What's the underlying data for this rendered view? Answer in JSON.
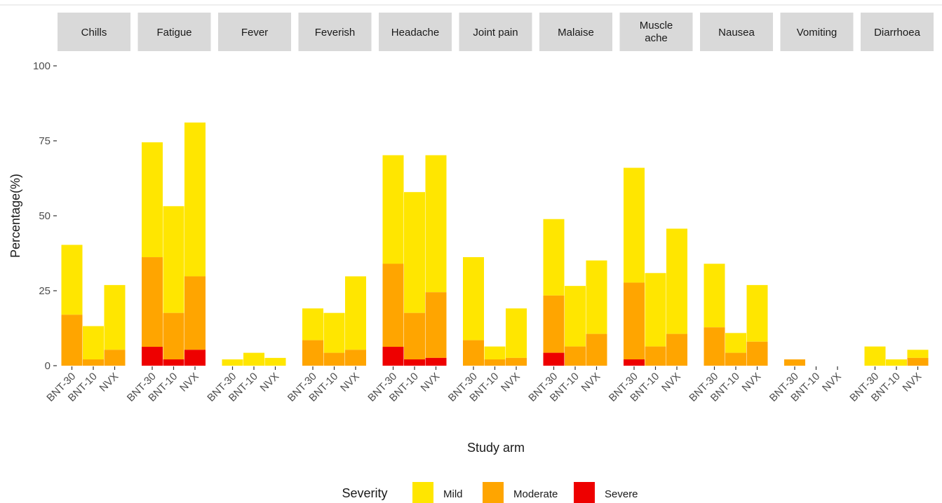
{
  "chart_data": {
    "type": "bar",
    "stacked": true,
    "xlabel": "Study arm",
    "ylabel": "Percentage(%)",
    "ylim": [
      0,
      100
    ],
    "yticks": [
      0,
      25,
      50,
      75,
      100
    ],
    "arms": [
      "BNT-30",
      "BNT-10",
      "NVX"
    ],
    "legend": {
      "title": "Severity",
      "position": "bottom",
      "items": [
        {
          "name": "Mild",
          "color": "#FFE600"
        },
        {
          "name": "Moderate",
          "color": "#FFA500"
        },
        {
          "name": "Severe",
          "color": "#EE0000"
        }
      ]
    },
    "facets": [
      {
        "label": [
          "Chills"
        ],
        "totals": [
          40.3,
          13.2,
          26.9
        ],
        "moderate": [
          17.0,
          2.1,
          5.3
        ],
        "severe": [
          0,
          0,
          0
        ]
      },
      {
        "label": [
          "Fatigue"
        ],
        "totals": [
          74.5,
          53.2,
          81.1
        ],
        "moderate": [
          36.2,
          17.6,
          29.8
        ],
        "severe": [
          6.3,
          2.1,
          5.3
        ]
      },
      {
        "label": [
          "Fever"
        ],
        "totals": [
          2.1,
          4.3,
          2.6
        ],
        "moderate": [
          0,
          0,
          0
        ],
        "severe": [
          0,
          0,
          0
        ]
      },
      {
        "label": [
          "Feverish"
        ],
        "totals": [
          19.1,
          17.6,
          29.8
        ],
        "moderate": [
          8.5,
          4.3,
          5.3
        ],
        "severe": [
          0,
          0,
          0
        ]
      },
      {
        "label": [
          "Headache"
        ],
        "totals": [
          70.2,
          57.9,
          70.2
        ],
        "moderate": [
          34.0,
          17.6,
          24.5
        ],
        "severe": [
          6.3,
          2.1,
          2.6
        ]
      },
      {
        "label": [
          "Joint pain"
        ],
        "totals": [
          36.2,
          6.4,
          19.1
        ],
        "moderate": [
          8.5,
          2.1,
          2.6
        ],
        "severe": [
          0,
          0,
          0
        ]
      },
      {
        "label": [
          "Malaise"
        ],
        "totals": [
          48.9,
          26.6,
          35.1
        ],
        "moderate": [
          23.4,
          6.4,
          10.6
        ],
        "severe": [
          4.3,
          0,
          0
        ]
      },
      {
        "label": [
          "Muscle",
          "ache"
        ],
        "totals": [
          66.0,
          30.9,
          45.7
        ],
        "moderate": [
          27.7,
          6.4,
          10.6
        ],
        "severe": [
          2.1,
          0,
          0
        ]
      },
      {
        "label": [
          "Nausea"
        ],
        "totals": [
          34.0,
          10.9,
          26.9
        ],
        "moderate": [
          12.8,
          4.3,
          8.0
        ],
        "severe": [
          0,
          0,
          0
        ]
      },
      {
        "label": [
          "Vomiting"
        ],
        "totals": [
          2.1,
          0,
          0
        ],
        "moderate": [
          2.1,
          0,
          0
        ],
        "severe": [
          0,
          0,
          0
        ]
      },
      {
        "label": [
          "Diarrhoea"
        ],
        "totals": [
          6.4,
          2.1,
          5.3
        ],
        "moderate": [
          0,
          0,
          2.6
        ],
        "severe": [
          0,
          0,
          0
        ]
      }
    ]
  }
}
